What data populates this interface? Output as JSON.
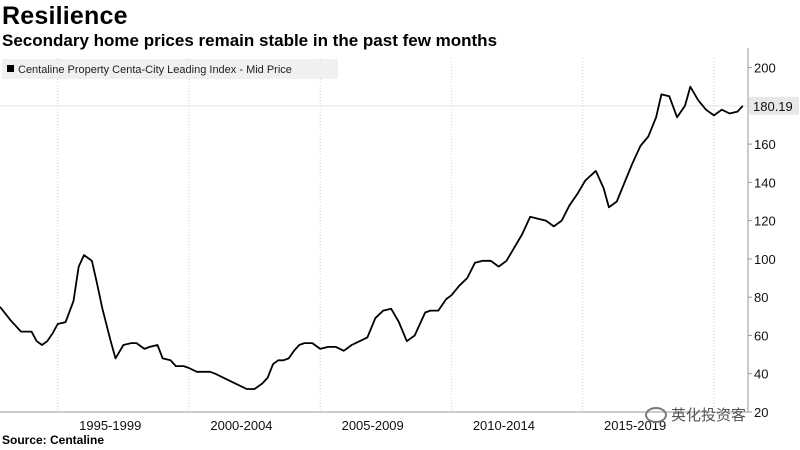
{
  "header": {
    "title": "Resilience",
    "subtitle": "Secondary home prices remain stable in the past few months"
  },
  "footer": {
    "source": "Source: Centaline"
  },
  "watermark": {
    "text": "英化投资客"
  },
  "colors": {
    "line": "#000000",
    "grid": "#d0d0d0",
    "legend_bg": "#f0f0f0"
  },
  "chart_data": {
    "type": "line",
    "title": "Resilience",
    "subtitle": "Secondary home prices remain stable in the past few months",
    "xlabel": "",
    "ylabel": "",
    "xlim": [
      1992.8,
      2021.3
    ],
    "ylim": [
      20,
      205
    ],
    "y_ticks": [
      20,
      40,
      60,
      80,
      100,
      120,
      140,
      160,
      180,
      200
    ],
    "y_tick_labels": [
      "20",
      "40",
      "60",
      "80",
      "100",
      "120",
      "140",
      "160",
      "180",
      "200"
    ],
    "x_ticks": [
      1997,
      2002,
      2007,
      2012,
      2017
    ],
    "x_tick_labels": [
      "1995-1999",
      "2000-2004",
      "2005-2009",
      "2010-2014",
      "2015-2019"
    ],
    "grid": "vertical",
    "legend_position": "top-left",
    "last_value_label": "180.19",
    "series": [
      {
        "name": "Centaline Property Centa-City Leading Index - Mid Price",
        "x": [
          1992.8,
          1993.2,
          1993.6,
          1994.0,
          1994.2,
          1994.4,
          1994.6,
          1994.8,
          1995.0,
          1995.3,
          1995.6,
          1995.8,
          1996.0,
          1996.3,
          1996.5,
          1996.7,
          1997.0,
          1997.2,
          1997.5,
          1997.8,
          1998.0,
          1998.3,
          1998.5,
          1998.8,
          1999.0,
          1999.3,
          1999.5,
          1999.8,
          2000.0,
          2000.3,
          2000.5,
          2000.8,
          2001.0,
          2001.3,
          2001.6,
          2001.9,
          2002.2,
          2002.5,
          2002.8,
          2003.0,
          2003.2,
          2003.4,
          2003.6,
          2003.8,
          2004.0,
          2004.2,
          2004.4,
          2004.7,
          2005.0,
          2005.3,
          2005.6,
          2005.9,
          2006.2,
          2006.5,
          2006.8,
          2007.1,
          2007.4,
          2007.7,
          2008.0,
          2008.3,
          2008.6,
          2008.8,
          2009.0,
          2009.2,
          2009.5,
          2009.8,
          2010.0,
          2010.3,
          2010.6,
          2010.9,
          2011.2,
          2011.5,
          2011.8,
          2012.1,
          2012.4,
          2012.7,
          2013.0,
          2013.3,
          2013.6,
          2013.9,
          2014.2,
          2014.5,
          2014.8,
          2015.1,
          2015.5,
          2015.8,
          2016.0,
          2016.3,
          2016.6,
          2016.9,
          2017.2,
          2017.5,
          2017.8,
          2018.0,
          2018.3,
          2018.6,
          2018.9,
          2019.1,
          2019.4,
          2019.7,
          2020.0,
          2020.3,
          2020.6,
          2020.9,
          2021.1
        ],
        "values": [
          75,
          68,
          62,
          62,
          57,
          55,
          57,
          61,
          66,
          67,
          78,
          96,
          102,
          99,
          87,
          74,
          58,
          48,
          55,
          56,
          56,
          53,
          54,
          55,
          48,
          47,
          44,
          44,
          43,
          41,
          41,
          41,
          40,
          38,
          36,
          34,
          32,
          32,
          35,
          38,
          45,
          47,
          47,
          48,
          52,
          55,
          56,
          56,
          53,
          54,
          54,
          52,
          55,
          57,
          59,
          69,
          73,
          74,
          67,
          57,
          60,
          66,
          72,
          73,
          73,
          79,
          81,
          86,
          90,
          98,
          99,
          99,
          96,
          99,
          106,
          113,
          122,
          121,
          120,
          117,
          120,
          128,
          134,
          141,
          146,
          137,
          127,
          130,
          140,
          150,
          159,
          164,
          174,
          186,
          185,
          174,
          180,
          190,
          183,
          178,
          175,
          178,
          176,
          177,
          180
        ]
      }
    ]
  }
}
